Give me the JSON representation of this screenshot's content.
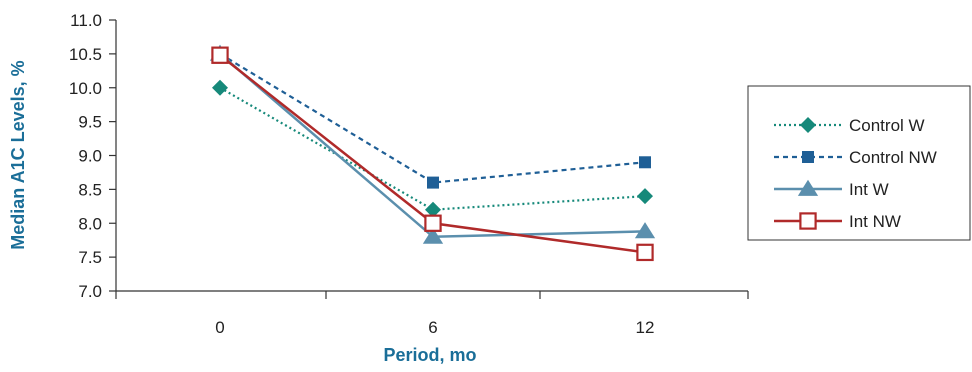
{
  "chart_data": {
    "type": "line",
    "xlabel": "Period, mo",
    "ylabel": "Median A1C Levels, %",
    "categories": [
      "0",
      "6",
      "12"
    ],
    "ylim": [
      7.0,
      11.0
    ],
    "yticks": [
      "7.0",
      "7.5",
      "8.0",
      "8.5",
      "9.0",
      "9.5",
      "10.0",
      "10.5",
      "11.0"
    ],
    "grid": false,
    "legend_position": "right",
    "series": [
      {
        "name": "Control W",
        "values": [
          10.0,
          8.2,
          8.4
        ],
        "color": "#16897a",
        "marker": "diamond",
        "line": "dotted"
      },
      {
        "name": "Control NW",
        "values": [
          10.5,
          8.6,
          8.9
        ],
        "color": "#1f5f96",
        "marker": "square",
        "line": "dashed"
      },
      {
        "name": "Int W",
        "values": [
          10.5,
          7.8,
          7.88
        ],
        "color": "#5b8fad",
        "marker": "triangle",
        "line": "solid"
      },
      {
        "name": "Int NW",
        "values": [
          10.48,
          8.0,
          7.57
        ],
        "color": "#b02a2a",
        "marker": "open-square",
        "line": "solid"
      }
    ]
  }
}
